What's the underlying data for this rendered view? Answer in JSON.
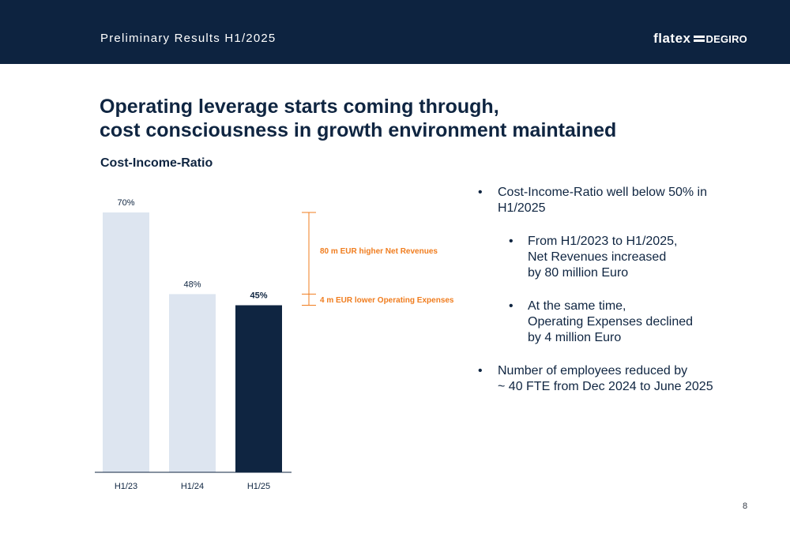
{
  "header": {
    "title": "Preliminary Results H1/2025",
    "logo_part1": "flatex",
    "logo_part2": "DEGIRO"
  },
  "heading": {
    "line1": "Operating leverage starts coming through,",
    "line2": "cost consciousness in growth environment maintained"
  },
  "chart_title": "Cost-Income-Ratio",
  "chart_data": {
    "type": "bar",
    "title": "Cost-Income-Ratio",
    "categories": [
      "H1/23",
      "H1/24",
      "H1/25"
    ],
    "values": [
      70,
      48,
      45
    ],
    "value_labels": [
      "70%",
      "48%",
      "45%"
    ],
    "unit": "%",
    "ylim": [
      0,
      70
    ],
    "colors": [
      "#dde5f0",
      "#dde5f0",
      "#0f2541"
    ],
    "annotations": [
      {
        "text": "80 m EUR higher Net Revenues",
        "from": 70,
        "to": 48
      },
      {
        "text": "4 m EUR lower Operating Expenses",
        "from": 48,
        "to": 45
      }
    ],
    "annotation_color": "#f07d1f"
  },
  "bullets": [
    {
      "lines": [
        "Cost-Income-Ratio well below 50% in",
        "H1/2025"
      ]
    },
    {
      "sub": true,
      "lines": [
        "From H1/2023 to H1/2025,",
        "Net Revenues increased",
        "by 80 million Euro"
      ]
    },
    {
      "sub": true,
      "lines": [
        "At the same time,",
        "Operating Expenses declined",
        "by 4 million Euro"
      ]
    },
    {
      "lines": [
        "Number of employees reduced by",
        "~ 40 FTE from Dec 2024 to June 2025"
      ]
    }
  ],
  "page_number": "8"
}
